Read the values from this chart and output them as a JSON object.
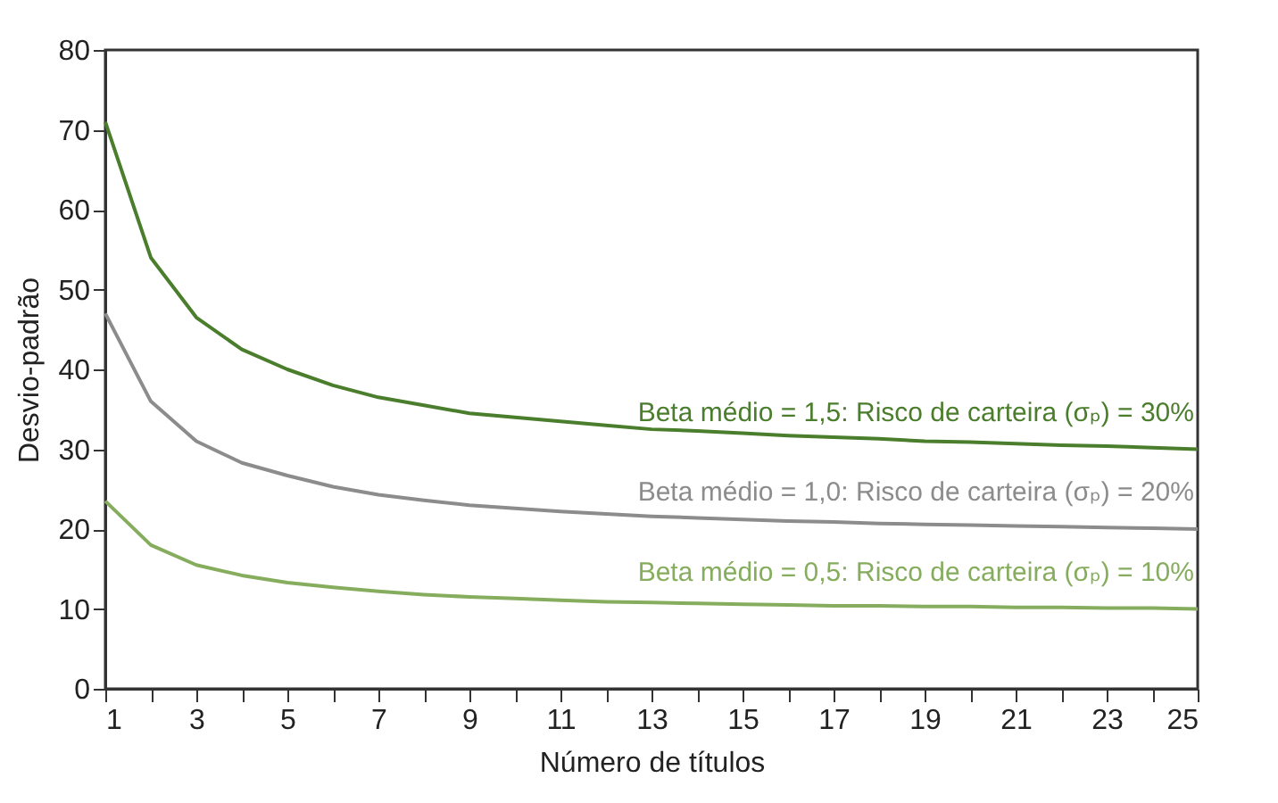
{
  "chart_data": {
    "type": "line",
    "xlabel": "Número de títulos",
    "ylabel": "Desvio-padrão",
    "x": [
      1,
      2,
      3,
      4,
      5,
      6,
      7,
      8,
      9,
      10,
      11,
      12,
      13,
      14,
      15,
      16,
      17,
      18,
      19,
      20,
      21,
      22,
      23,
      24,
      25
    ],
    "series": [
      {
        "name": "Beta médio = 1,5: Risco de carteira (σₚ) = 30%",
        "color": "#4a7d2c",
        "values": [
          71,
          54,
          46.5,
          42.5,
          40,
          38,
          36.5,
          35.5,
          34.5,
          34,
          33.5,
          33,
          32.5,
          32.3,
          32,
          31.7,
          31.5,
          31.3,
          31,
          30.9,
          30.7,
          30.5,
          30.4,
          30.2,
          30
        ]
      },
      {
        "name": "Beta médio = 1,0: Risco de carteira (σₚ) = 20%",
        "color": "#8c8c8c",
        "values": [
          47,
          36,
          31,
          28.3,
          26.7,
          25.3,
          24.3,
          23.6,
          23,
          22.6,
          22.2,
          21.9,
          21.6,
          21.4,
          21.2,
          21,
          20.9,
          20.7,
          20.6,
          20.5,
          20.4,
          20.3,
          20.2,
          20.1,
          20
        ]
      },
      {
        "name": "Beta médio = 0,5: Risco de carteira (σₚ) = 10%",
        "color": "#86ad5e",
        "values": [
          23.5,
          18,
          15.5,
          14.2,
          13.3,
          12.7,
          12.2,
          11.8,
          11.5,
          11.3,
          11.1,
          10.9,
          10.8,
          10.7,
          10.6,
          10.5,
          10.4,
          10.4,
          10.3,
          10.3,
          10.2,
          10.2,
          10.1,
          10.1,
          10
        ]
      }
    ],
    "xlim": [
      1,
      25
    ],
    "xticks": [
      1,
      {
        "value": 2,
        "label": null
      },
      3,
      {
        "value": 4,
        "label": null
      },
      5,
      {
        "value": 6,
        "label": null
      },
      7,
      {
        "value": 8,
        "label": null
      },
      9,
      {
        "value": 10,
        "label": null
      },
      11,
      {
        "value": 12,
        "label": null
      },
      13,
      {
        "value": 14,
        "label": null
      },
      15,
      {
        "value": 16,
        "label": null
      },
      17,
      {
        "value": 18,
        "label": null
      },
      19,
      {
        "value": 20,
        "label": null
      },
      21,
      {
        "value": 22,
        "label": null
      },
      23,
      {
        "value": 24,
        "label": null
      },
      25
    ],
    "ylim": [
      0,
      80
    ],
    "yticks": [
      0,
      10,
      20,
      30,
      40,
      50,
      60,
      70,
      80
    ],
    "grid": false,
    "legend": false,
    "marker": "none",
    "line_style": "solid"
  }
}
